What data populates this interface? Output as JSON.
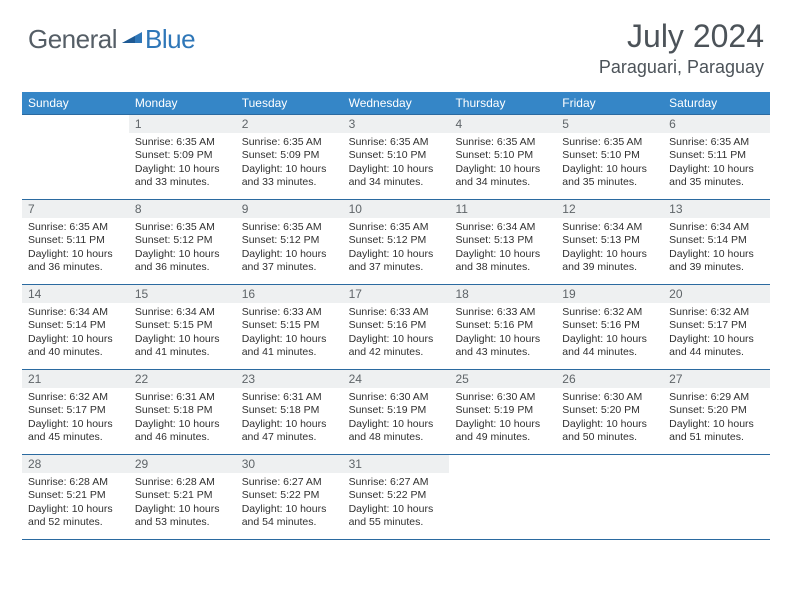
{
  "logo": {
    "text_a": "General",
    "text_b": "Blue"
  },
  "title": "July 2024",
  "location": "Paraguari, Paraguay",
  "colors": {
    "header_bar": "#3586c7",
    "header_text": "#ffffff",
    "rule": "#2b6aa0",
    "daynum_bg": "#eef0f1",
    "body_text": "#303030",
    "title_text": "#4c5359",
    "logo_gray": "#555e66",
    "logo_blue": "#2f77b8"
  },
  "weekdays": [
    "Sunday",
    "Monday",
    "Tuesday",
    "Wednesday",
    "Thursday",
    "Friday",
    "Saturday"
  ],
  "weeks": [
    [
      {
        "day": "",
        "sunrise": "",
        "sunset": "",
        "daylight": ""
      },
      {
        "day": "1",
        "sunrise": "Sunrise: 6:35 AM",
        "sunset": "Sunset: 5:09 PM",
        "daylight": "Daylight: 10 hours and 33 minutes."
      },
      {
        "day": "2",
        "sunrise": "Sunrise: 6:35 AM",
        "sunset": "Sunset: 5:09 PM",
        "daylight": "Daylight: 10 hours and 33 minutes."
      },
      {
        "day": "3",
        "sunrise": "Sunrise: 6:35 AM",
        "sunset": "Sunset: 5:10 PM",
        "daylight": "Daylight: 10 hours and 34 minutes."
      },
      {
        "day": "4",
        "sunrise": "Sunrise: 6:35 AM",
        "sunset": "Sunset: 5:10 PM",
        "daylight": "Daylight: 10 hours and 34 minutes."
      },
      {
        "day": "5",
        "sunrise": "Sunrise: 6:35 AM",
        "sunset": "Sunset: 5:10 PM",
        "daylight": "Daylight: 10 hours and 35 minutes."
      },
      {
        "day": "6",
        "sunrise": "Sunrise: 6:35 AM",
        "sunset": "Sunset: 5:11 PM",
        "daylight": "Daylight: 10 hours and 35 minutes."
      }
    ],
    [
      {
        "day": "7",
        "sunrise": "Sunrise: 6:35 AM",
        "sunset": "Sunset: 5:11 PM",
        "daylight": "Daylight: 10 hours and 36 minutes."
      },
      {
        "day": "8",
        "sunrise": "Sunrise: 6:35 AM",
        "sunset": "Sunset: 5:12 PM",
        "daylight": "Daylight: 10 hours and 36 minutes."
      },
      {
        "day": "9",
        "sunrise": "Sunrise: 6:35 AM",
        "sunset": "Sunset: 5:12 PM",
        "daylight": "Daylight: 10 hours and 37 minutes."
      },
      {
        "day": "10",
        "sunrise": "Sunrise: 6:35 AM",
        "sunset": "Sunset: 5:12 PM",
        "daylight": "Daylight: 10 hours and 37 minutes."
      },
      {
        "day": "11",
        "sunrise": "Sunrise: 6:34 AM",
        "sunset": "Sunset: 5:13 PM",
        "daylight": "Daylight: 10 hours and 38 minutes."
      },
      {
        "day": "12",
        "sunrise": "Sunrise: 6:34 AM",
        "sunset": "Sunset: 5:13 PM",
        "daylight": "Daylight: 10 hours and 39 minutes."
      },
      {
        "day": "13",
        "sunrise": "Sunrise: 6:34 AM",
        "sunset": "Sunset: 5:14 PM",
        "daylight": "Daylight: 10 hours and 39 minutes."
      }
    ],
    [
      {
        "day": "14",
        "sunrise": "Sunrise: 6:34 AM",
        "sunset": "Sunset: 5:14 PM",
        "daylight": "Daylight: 10 hours and 40 minutes."
      },
      {
        "day": "15",
        "sunrise": "Sunrise: 6:34 AM",
        "sunset": "Sunset: 5:15 PM",
        "daylight": "Daylight: 10 hours and 41 minutes."
      },
      {
        "day": "16",
        "sunrise": "Sunrise: 6:33 AM",
        "sunset": "Sunset: 5:15 PM",
        "daylight": "Daylight: 10 hours and 41 minutes."
      },
      {
        "day": "17",
        "sunrise": "Sunrise: 6:33 AM",
        "sunset": "Sunset: 5:16 PM",
        "daylight": "Daylight: 10 hours and 42 minutes."
      },
      {
        "day": "18",
        "sunrise": "Sunrise: 6:33 AM",
        "sunset": "Sunset: 5:16 PM",
        "daylight": "Daylight: 10 hours and 43 minutes."
      },
      {
        "day": "19",
        "sunrise": "Sunrise: 6:32 AM",
        "sunset": "Sunset: 5:16 PM",
        "daylight": "Daylight: 10 hours and 44 minutes."
      },
      {
        "day": "20",
        "sunrise": "Sunrise: 6:32 AM",
        "sunset": "Sunset: 5:17 PM",
        "daylight": "Daylight: 10 hours and 44 minutes."
      }
    ],
    [
      {
        "day": "21",
        "sunrise": "Sunrise: 6:32 AM",
        "sunset": "Sunset: 5:17 PM",
        "daylight": "Daylight: 10 hours and 45 minutes."
      },
      {
        "day": "22",
        "sunrise": "Sunrise: 6:31 AM",
        "sunset": "Sunset: 5:18 PM",
        "daylight": "Daylight: 10 hours and 46 minutes."
      },
      {
        "day": "23",
        "sunrise": "Sunrise: 6:31 AM",
        "sunset": "Sunset: 5:18 PM",
        "daylight": "Daylight: 10 hours and 47 minutes."
      },
      {
        "day": "24",
        "sunrise": "Sunrise: 6:30 AM",
        "sunset": "Sunset: 5:19 PM",
        "daylight": "Daylight: 10 hours and 48 minutes."
      },
      {
        "day": "25",
        "sunrise": "Sunrise: 6:30 AM",
        "sunset": "Sunset: 5:19 PM",
        "daylight": "Daylight: 10 hours and 49 minutes."
      },
      {
        "day": "26",
        "sunrise": "Sunrise: 6:30 AM",
        "sunset": "Sunset: 5:20 PM",
        "daylight": "Daylight: 10 hours and 50 minutes."
      },
      {
        "day": "27",
        "sunrise": "Sunrise: 6:29 AM",
        "sunset": "Sunset: 5:20 PM",
        "daylight": "Daylight: 10 hours and 51 minutes."
      }
    ],
    [
      {
        "day": "28",
        "sunrise": "Sunrise: 6:28 AM",
        "sunset": "Sunset: 5:21 PM",
        "daylight": "Daylight: 10 hours and 52 minutes."
      },
      {
        "day": "29",
        "sunrise": "Sunrise: 6:28 AM",
        "sunset": "Sunset: 5:21 PM",
        "daylight": "Daylight: 10 hours and 53 minutes."
      },
      {
        "day": "30",
        "sunrise": "Sunrise: 6:27 AM",
        "sunset": "Sunset: 5:22 PM",
        "daylight": "Daylight: 10 hours and 54 minutes."
      },
      {
        "day": "31",
        "sunrise": "Sunrise: 6:27 AM",
        "sunset": "Sunset: 5:22 PM",
        "daylight": "Daylight: 10 hours and 55 minutes."
      },
      {
        "day": "",
        "sunrise": "",
        "sunset": "",
        "daylight": ""
      },
      {
        "day": "",
        "sunrise": "",
        "sunset": "",
        "daylight": ""
      },
      {
        "day": "",
        "sunrise": "",
        "sunset": "",
        "daylight": ""
      }
    ]
  ]
}
